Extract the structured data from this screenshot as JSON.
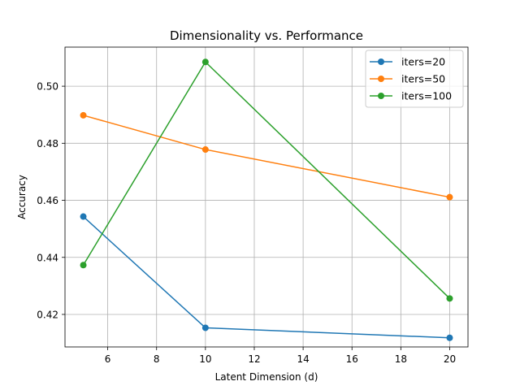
{
  "chart_data": {
    "type": "line",
    "title": "Dimensionality vs. Performance",
    "xlabel": "Latent Dimension (d)",
    "ylabel": "Accuracy",
    "x": [
      5,
      10,
      20
    ],
    "xlim": [
      4.25,
      20.75
    ],
    "ylim": [
      0.4086,
      0.5137
    ],
    "xticks": [
      6,
      8,
      10,
      12,
      14,
      16,
      18,
      20
    ],
    "yticks": [
      0.42,
      0.44,
      0.46,
      0.48,
      0.5
    ],
    "ytick_labels": [
      "0.42",
      "0.44",
      "0.46",
      "0.48",
      "0.50"
    ],
    "grid": true,
    "legend_position": "top-right",
    "series": [
      {
        "name": "iters=20",
        "color": "#1f77b4",
        "values": [
          0.4543,
          0.4153,
          0.4118
        ]
      },
      {
        "name": "iters=50",
        "color": "#ff7f0e",
        "values": [
          0.4898,
          0.4778,
          0.4611
        ]
      },
      {
        "name": "iters=100",
        "color": "#2ca02c",
        "values": [
          0.4373,
          0.5085,
          0.4256
        ]
      }
    ]
  }
}
